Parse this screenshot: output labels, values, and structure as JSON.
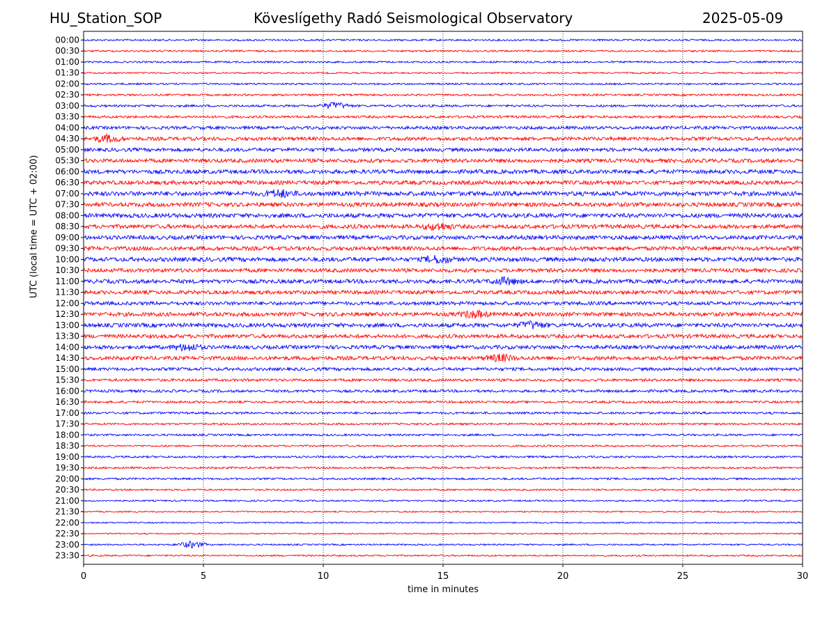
{
  "header": {
    "station": "HU_Station_SOP",
    "observatory": "Köveslígethy Radó Seismological Observatory",
    "date": "2025-05-09"
  },
  "chart_data": {
    "type": "line",
    "title": "Köveslígethy Radó Seismological Observatory",
    "xlabel": "time in minutes",
    "ylabel": "UTC (local time = UTC + 02:00)",
    "xlim": [
      0,
      30
    ],
    "x_ticks": [
      0,
      5,
      10,
      15,
      20,
      25,
      30
    ],
    "grid": "vertical dotted lines at x ticks",
    "row_labels": [
      "00:00",
      "00:30",
      "01:00",
      "01:30",
      "02:00",
      "02:30",
      "03:00",
      "03:30",
      "04:00",
      "04:30",
      "05:00",
      "05:30",
      "06:00",
      "06:30",
      "07:00",
      "07:30",
      "08:00",
      "08:30",
      "09:00",
      "09:30",
      "10:00",
      "10:30",
      "11:00",
      "11:30",
      "12:00",
      "12:30",
      "13:00",
      "13:30",
      "14:00",
      "14:30",
      "15:00",
      "15:30",
      "16:00",
      "16:30",
      "17:00",
      "17:30",
      "18:00",
      "18:30",
      "19:00",
      "19:30",
      "20:00",
      "20:30",
      "21:00",
      "21:30",
      "22:00",
      "22:30",
      "23:00",
      "23:30"
    ],
    "row_colors": [
      "#0000ff",
      "#ff0000"
    ],
    "relative_noise_amplitude": [
      0.4,
      0.4,
      0.4,
      0.35,
      0.4,
      0.45,
      0.5,
      0.55,
      0.7,
      0.8,
      0.8,
      0.85,
      0.9,
      0.9,
      1.0,
      0.95,
      0.95,
      0.9,
      0.9,
      0.9,
      0.95,
      0.85,
      0.9,
      0.85,
      0.8,
      0.9,
      0.9,
      0.85,
      0.85,
      0.85,
      0.7,
      0.6,
      0.6,
      0.5,
      0.5,
      0.45,
      0.45,
      0.4,
      0.45,
      0.45,
      0.45,
      0.4,
      0.35,
      0.3,
      0.3,
      0.3,
      0.35,
      0.35
    ],
    "events": [
      {
        "row": "03:00",
        "minute": 10.5
      },
      {
        "row": "04:30",
        "minute": 1.0
      },
      {
        "row": "07:00",
        "minute": 8.2
      },
      {
        "row": "08:30",
        "minute": 14.8
      },
      {
        "row": "10:00",
        "minute": 14.8
      },
      {
        "row": "11:00",
        "minute": 17.6
      },
      {
        "row": "12:30",
        "minute": 16.3
      },
      {
        "row": "13:00",
        "minute": 18.7
      },
      {
        "row": "14:00",
        "minute": 4.3
      },
      {
        "row": "14:30",
        "minute": 17.4
      },
      {
        "row": "23:00",
        "minute": 4.5
      }
    ]
  }
}
